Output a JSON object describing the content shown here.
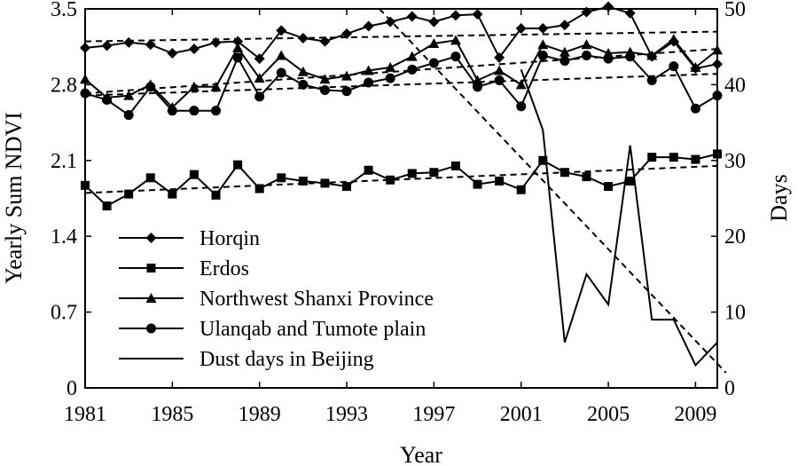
{
  "chart_data": {
    "type": "line",
    "xlabel": "Year",
    "ylabel_left": "Yearly Sum NDVI",
    "ylabel_right": "Days",
    "xlim": [
      1981,
      2010
    ],
    "ylim_left": [
      0,
      3.5
    ],
    "ylim_right": [
      0,
      50
    ],
    "x_ticks": [
      1981,
      1985,
      1989,
      1993,
      1997,
      2001,
      2005,
      2009
    ],
    "y_left_ticks": [
      0,
      0.7,
      1.4,
      2.1,
      2.8,
      3.5
    ],
    "y_left_tick_labels": [
      "0",
      "0.7",
      "1.4",
      "2.1",
      "2.8",
      "3.5"
    ],
    "y_right_ticks": [
      0,
      10,
      20,
      30,
      40,
      50
    ],
    "legend_placement": "bottom-left",
    "grid": false,
    "series": [
      {
        "name": "Horqin",
        "marker": "diamond",
        "axis": "left",
        "x": [
          1981,
          1982,
          1983,
          1984,
          1985,
          1986,
          1987,
          1988,
          1989,
          1990,
          1991,
          1992,
          1993,
          1994,
          1995,
          1996,
          1997,
          1998,
          1999,
          2000,
          2001,
          2002,
          2003,
          2004,
          2005,
          2006,
          2007,
          2008,
          2009,
          2010
        ],
        "y": [
          3.14,
          3.16,
          3.19,
          3.17,
          3.09,
          3.13,
          3.19,
          3.2,
          3.04,
          3.3,
          3.23,
          3.2,
          3.27,
          3.34,
          3.38,
          3.43,
          3.38,
          3.44,
          3.45,
          3.05,
          3.32,
          3.32,
          3.35,
          3.47,
          3.52,
          3.46,
          3.06,
          3.2,
          2.95,
          2.99
        ],
        "trend": [
          [
            1981,
            3.2
          ],
          [
            2010,
            3.29
          ]
        ]
      },
      {
        "name": "Erdos",
        "marker": "square",
        "axis": "left",
        "x": [
          1981,
          1982,
          1983,
          1984,
          1985,
          1986,
          1987,
          1988,
          1989,
          1990,
          1991,
          1992,
          1993,
          1994,
          1995,
          1996,
          1997,
          1998,
          1999,
          2000,
          2001,
          2002,
          2003,
          2004,
          2005,
          2006,
          2007,
          2008,
          2009,
          2010
        ],
        "y": [
          1.87,
          1.68,
          1.79,
          1.94,
          1.79,
          1.97,
          1.78,
          2.06,
          1.84,
          1.94,
          1.91,
          1.89,
          1.86,
          2.01,
          1.92,
          1.98,
          1.99,
          2.05,
          1.88,
          1.91,
          1.83,
          2.1,
          1.99,
          1.95,
          1.86,
          1.91,
          2.13,
          2.13,
          2.11,
          2.16
        ],
        "trend": [
          [
            1981,
            1.8
          ],
          [
            2010,
            2.05
          ]
        ]
      },
      {
        "name": "Northwest Shanxi Province",
        "marker": "triangle",
        "axis": "left",
        "x": [
          1981,
          1982,
          1983,
          1984,
          1985,
          1986,
          1987,
          1988,
          1989,
          1990,
          1991,
          1992,
          1993,
          1994,
          1995,
          1996,
          1997,
          1998,
          1999,
          2000,
          2001,
          2002,
          2003,
          2004,
          2005,
          2006,
          2007,
          2008,
          2009,
          2010
        ],
        "y": [
          2.85,
          2.68,
          2.7,
          2.8,
          2.59,
          2.78,
          2.78,
          3.14,
          2.86,
          3.07,
          2.92,
          2.85,
          2.88,
          2.93,
          2.96,
          3.06,
          3.18,
          3.21,
          2.84,
          2.93,
          2.8,
          3.17,
          3.1,
          3.17,
          3.09,
          3.1,
          3.07,
          3.22,
          2.96,
          3.12
        ],
        "trend": [
          [
            1981,
            2.72
          ],
          [
            2010,
            3.13
          ]
        ]
      },
      {
        "name": "Ulanqab and Tumote plain",
        "marker": "circle",
        "axis": "left",
        "x": [
          1981,
          1982,
          1983,
          1984,
          1985,
          1986,
          1987,
          1988,
          1989,
          1990,
          1991,
          1992,
          1993,
          1994,
          1995,
          1996,
          1997,
          1998,
          1999,
          2000,
          2001,
          2002,
          2003,
          2004,
          2005,
          2006,
          2007,
          2008,
          2009,
          2010
        ],
        "y": [
          2.72,
          2.66,
          2.52,
          2.78,
          2.56,
          2.56,
          2.56,
          3.05,
          2.69,
          2.91,
          2.8,
          2.75,
          2.74,
          2.82,
          2.86,
          2.94,
          3.0,
          3.06,
          2.78,
          2.84,
          2.6,
          3.07,
          3.02,
          3.07,
          3.04,
          3.06,
          2.84,
          2.97,
          2.58,
          2.7
        ],
        "trend": [
          [
            1981,
            2.7
          ],
          [
            2010,
            2.9
          ]
        ]
      },
      {
        "name": "Dust days in Beijing",
        "marker": "none",
        "axis": "right",
        "x": [
          2001,
          2002,
          2003,
          2004,
          2005,
          2006,
          2007,
          2008,
          2009,
          2010
        ],
        "y": [
          42,
          34,
          6,
          15,
          11,
          32,
          9,
          9,
          3,
          6
        ],
        "trend": [
          [
            1994.5,
            50
          ],
          [
            2010.4,
            2
          ]
        ]
      }
    ]
  }
}
